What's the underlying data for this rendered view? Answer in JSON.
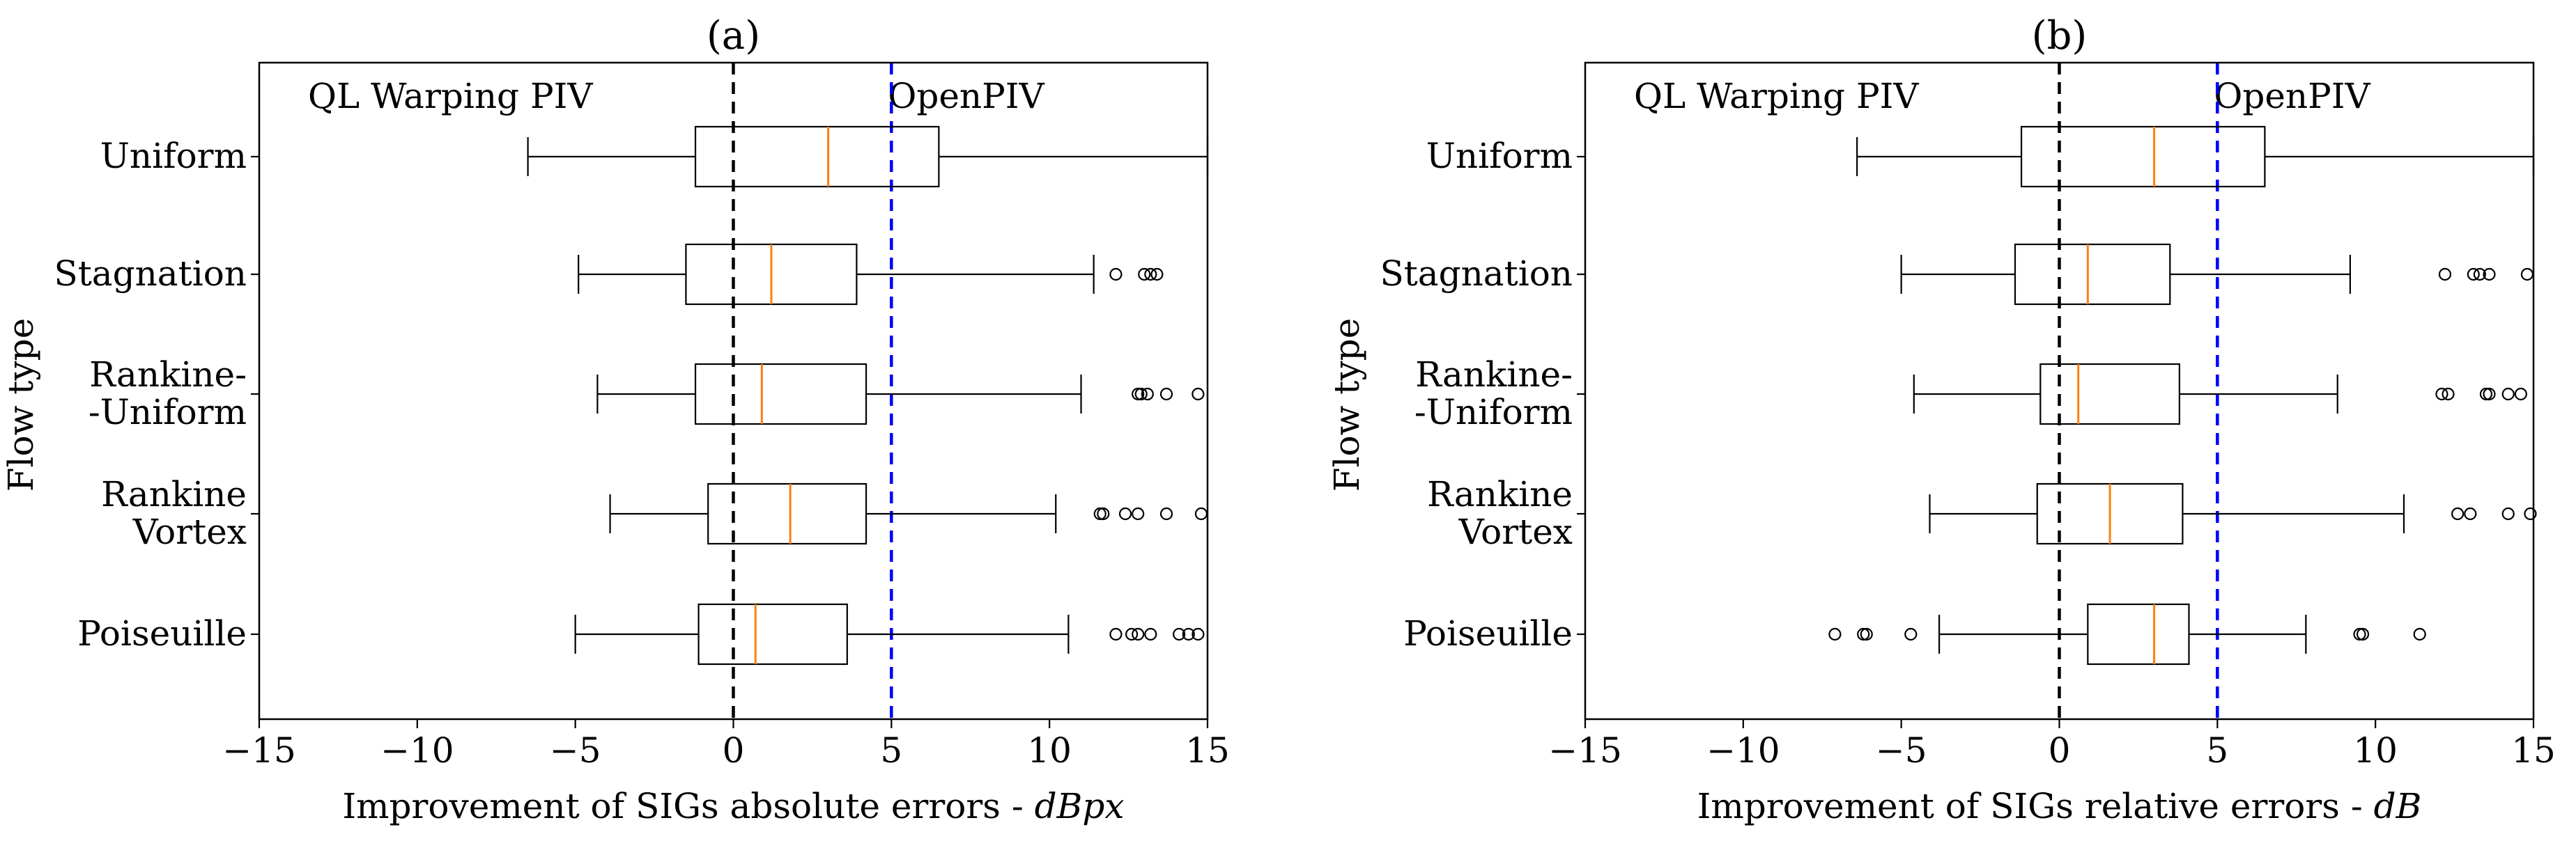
{
  "colors": {
    "box": "#000000",
    "median": "#ff7f0e",
    "zero_line": "#000000",
    "openpiv_line": "#0000ff"
  },
  "chart_data": [
    {
      "type": "boxplot",
      "orientation": "horizontal",
      "title": "(a)",
      "xlabel_prefix": "Improvement of SIGs absolute errors - ",
      "xlabel_unit": "dBpx",
      "ylabel": "Flow type",
      "xlim": [
        -15,
        15
      ],
      "xticks": [
        -15,
        -10,
        -5,
        0,
        5,
        10,
        15
      ],
      "xtick_labels": [
        "−15",
        "−10",
        "−5",
        "0",
        "5",
        "10",
        "15"
      ],
      "annotations": {
        "left": "QL Warping PIV",
        "right": "OpenPIV"
      },
      "reference_lines": [
        {
          "x": 0,
          "style": "dashed",
          "color": "black"
        },
        {
          "x": 5,
          "style": "dashed",
          "color": "blue"
        }
      ],
      "categories": [
        {
          "label_lines": [
            "Uniform"
          ],
          "whisker_low": -6.5,
          "q1": -1.2,
          "median": 3.0,
          "q3": 6.5,
          "whisker_high": 15,
          "outliers": []
        },
        {
          "label_lines": [
            "Stagnation"
          ],
          "whisker_low": -4.9,
          "q1": -1.5,
          "median": 1.2,
          "q3": 3.9,
          "whisker_high": 11.4,
          "outliers": [
            12.1,
            13.0,
            13.2,
            13.4
          ]
        },
        {
          "label_lines": [
            "Rankine-",
            "-Uniform"
          ],
          "whisker_low": -4.3,
          "q1": -1.2,
          "median": 0.9,
          "q3": 4.2,
          "whisker_high": 11.0,
          "outliers": [
            12.8,
            12.9,
            13.1,
            13.7,
            14.7
          ]
        },
        {
          "label_lines": [
            "Rankine",
            "Vortex"
          ],
          "whisker_low": -3.9,
          "q1": -0.8,
          "median": 1.8,
          "q3": 4.2,
          "whisker_high": 10.2,
          "outliers": [
            11.6,
            11.7,
            12.4,
            12.8,
            13.7,
            14.8
          ]
        },
        {
          "label_lines": [
            "Poiseuille"
          ],
          "whisker_low": -5.0,
          "q1": -1.1,
          "median": 0.7,
          "q3": 3.6,
          "whisker_high": 10.6,
          "outliers": [
            12.1,
            12.6,
            12.8,
            13.2,
            14.1,
            14.4,
            14.7
          ]
        }
      ]
    },
    {
      "type": "boxplot",
      "orientation": "horizontal",
      "title": "(b)",
      "xlabel_prefix": "Improvement of SIGs relative errors - ",
      "xlabel_unit": "dB",
      "ylabel": "Flow type",
      "xlim": [
        -15,
        15
      ],
      "xticks": [
        -15,
        -10,
        -5,
        0,
        5,
        10,
        15
      ],
      "xtick_labels": [
        "−15",
        "−10",
        "−5",
        "0",
        "5",
        "10",
        "15"
      ],
      "annotations": {
        "left": "QL Warping PIV",
        "right": "OpenPIV"
      },
      "reference_lines": [
        {
          "x": 0,
          "style": "dashed",
          "color": "black"
        },
        {
          "x": 5,
          "style": "dashed",
          "color": "blue"
        }
      ],
      "categories": [
        {
          "label_lines": [
            "Uniform"
          ],
          "whisker_low": -6.4,
          "q1": -1.2,
          "median": 3.0,
          "q3": 6.5,
          "whisker_high": 15,
          "outliers": []
        },
        {
          "label_lines": [
            "Stagnation"
          ],
          "whisker_low": -5.0,
          "q1": -1.4,
          "median": 0.9,
          "q3": 3.5,
          "whisker_high": 9.2,
          "outliers": [
            12.2,
            13.1,
            13.3,
            13.6,
            14.8
          ]
        },
        {
          "label_lines": [
            "Rankine-",
            "-Uniform"
          ],
          "whisker_low": -4.6,
          "q1": -0.6,
          "median": 0.6,
          "q3": 3.8,
          "whisker_high": 8.8,
          "outliers": [
            12.1,
            12.3,
            13.5,
            13.6,
            14.2,
            14.6
          ]
        },
        {
          "label_lines": [
            "Rankine",
            "Vortex"
          ],
          "whisker_low": -4.1,
          "q1": -0.7,
          "median": 1.6,
          "q3": 3.9,
          "whisker_high": 10.9,
          "outliers": [
            12.6,
            13.0,
            14.2,
            14.9
          ]
        },
        {
          "label_lines": [
            "Poiseuille"
          ],
          "whisker_low": -3.8,
          "q1": 0.9,
          "median": 3.0,
          "q3": 4.1,
          "whisker_high": 7.8,
          "outliers": [
            -7.1,
            -6.2,
            -6.1,
            -4.7,
            9.5,
            9.6,
            11.4
          ]
        }
      ]
    }
  ]
}
